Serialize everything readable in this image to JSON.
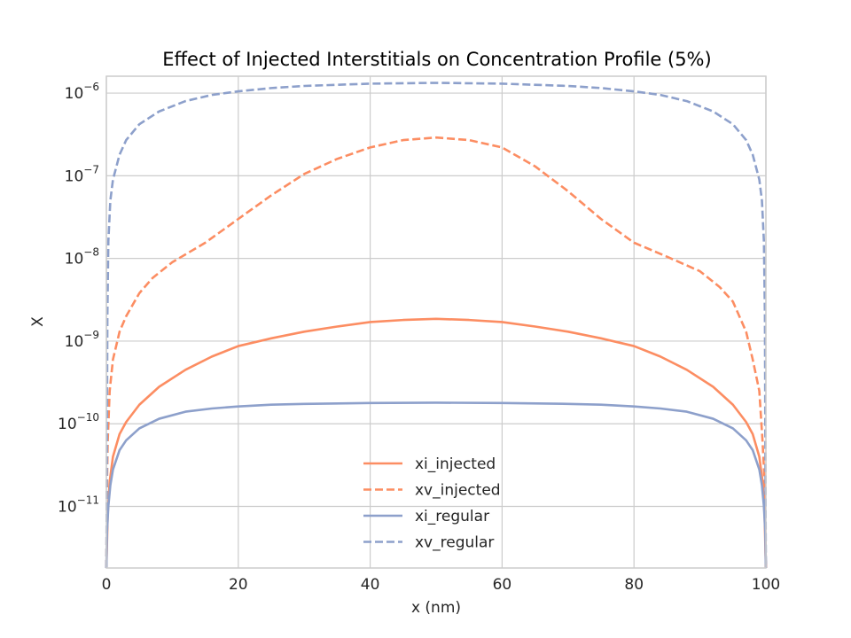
{
  "chart_data": {
    "type": "line",
    "title": "Effect of Injected Interstitials on Concentration Profile (5%)",
    "xlabel": "x (nm)",
    "ylabel": "X",
    "xlim": [
      0,
      100
    ],
    "ylim": [
      1.8e-12,
      1.6e-06
    ],
    "yscale": "log",
    "grid": true,
    "legend_position": "lower center",
    "x_ticks": [
      0,
      20,
      40,
      60,
      80,
      100
    ],
    "x_tick_labels": [
      "0",
      "20",
      "40",
      "60",
      "80",
      "100"
    ],
    "y_ticks": [
      {
        "base": "10",
        "exp": "−6",
        "value": 1e-06
      },
      {
        "base": "10",
        "exp": "−7",
        "value": 1e-07
      },
      {
        "base": "10",
        "exp": "−8",
        "value": 1e-08
      },
      {
        "base": "10",
        "exp": "−9",
        "value": 1e-09
      },
      {
        "base": "10",
        "exp": "−10",
        "value": 1e-10
      },
      {
        "base": "10",
        "exp": "−11",
        "value": 1e-11
      }
    ],
    "series": [
      {
        "name": "xi_injected",
        "color": "#fc8d62",
        "dash": "solid",
        "x": [
          0,
          0.2,
          0.5,
          1,
          2,
          3,
          5,
          8,
          12,
          16,
          20,
          25,
          30,
          35,
          40,
          45,
          50,
          55,
          60,
          65,
          70,
          75,
          80,
          84,
          88,
          92,
          95,
          97,
          98,
          99,
          99.5,
          99.8,
          100
        ],
        "y": [
          1.8e-12,
          8e-12,
          2e-11,
          4e-11,
          7.5e-11,
          1.05e-10,
          1.7e-10,
          2.8e-10,
          4.5e-10,
          6.5e-10,
          8.7e-10,
          1.08e-09,
          1.3e-09,
          1.5e-09,
          1.7e-09,
          1.8e-09,
          1.86e-09,
          1.8e-09,
          1.7e-09,
          1.5e-09,
          1.3e-09,
          1.08e-09,
          8.7e-10,
          6.5e-10,
          4.5e-10,
          2.8e-10,
          1.7e-10,
          1.05e-10,
          7.5e-11,
          4e-11,
          2e-11,
          8e-12,
          1.8e-12
        ]
      },
      {
        "name": "xv_injected",
        "color": "#fc8d62",
        "dash": "dashed",
        "x": [
          0,
          0.1,
          0.2,
          0.5,
          1,
          2,
          3,
          5,
          7,
          10,
          15,
          20,
          25,
          30,
          35,
          40,
          45,
          50,
          55,
          60,
          65,
          70,
          75,
          80,
          85,
          90,
          93,
          95,
          97,
          98,
          99,
          99.5,
          99.8,
          99.9,
          100
        ],
        "y": [
          1.8e-12,
          2e-11,
          6e-11,
          2.5e-10,
          6e-10,
          1.3e-09,
          2e-09,
          3.8e-09,
          5.8e-09,
          9e-09,
          1.55e-08,
          3e-08,
          5.8e-08,
          1.05e-07,
          1.6e-07,
          2.2e-07,
          2.7e-07,
          2.9e-07,
          2.7e-07,
          2.2e-07,
          1.3e-07,
          6.5e-08,
          3e-08,
          1.55e-08,
          1.05e-08,
          7e-09,
          4.5e-09,
          3e-09,
          1.3e-09,
          6e-10,
          2.5e-10,
          6e-11,
          2e-11,
          6e-12,
          1.8e-12
        ]
      },
      {
        "name": "xi_regular",
        "color": "#8da0cb",
        "dash": "solid",
        "x": [
          0,
          0.1,
          0.3,
          0.6,
          1,
          2,
          3,
          5,
          8,
          12,
          16,
          20,
          25,
          30,
          40,
          50,
          60,
          70,
          75,
          80,
          84,
          88,
          92,
          95,
          97,
          98,
          99,
          99.4,
          99.7,
          99.9,
          100
        ],
        "y": [
          1.8e-12,
          5e-12,
          1e-11,
          1.8e-11,
          2.8e-11,
          4.8e-11,
          6.3e-11,
          8.8e-11,
          1.15e-10,
          1.4e-10,
          1.53e-10,
          1.62e-10,
          1.7e-10,
          1.74e-10,
          1.78e-10,
          1.8e-10,
          1.78e-10,
          1.74e-10,
          1.7e-10,
          1.62e-10,
          1.53e-10,
          1.4e-10,
          1.15e-10,
          8.8e-11,
          6.3e-11,
          4.8e-11,
          2.8e-11,
          1.8e-11,
          1e-11,
          5e-12,
          1.8e-12
        ]
      },
      {
        "name": "xv_regular",
        "color": "#8da0cb",
        "dash": "dashed",
        "x": [
          0,
          0.05,
          0.15,
          0.3,
          0.6,
          1,
          2,
          3,
          5,
          8,
          12,
          16,
          20,
          25,
          30,
          40,
          50,
          60,
          70,
          75,
          80,
          84,
          88,
          92,
          95,
          97,
          98,
          99,
          99.4,
          99.7,
          99.85,
          99.95,
          100
        ],
        "y": [
          1.8e-12,
          1e-11,
          2e-09,
          1.6e-08,
          5e-08,
          9e-08,
          1.8e-07,
          2.7e-07,
          4.2e-07,
          6e-07,
          8e-07,
          9.5e-07,
          1.05e-06,
          1.15e-06,
          1.22e-06,
          1.3e-06,
          1.33e-06,
          1.3e-06,
          1.22e-06,
          1.15e-06,
          1.05e-06,
          9.5e-07,
          8e-07,
          6e-07,
          4.2e-07,
          2.7e-07,
          1.8e-07,
          9e-08,
          5e-08,
          1.6e-08,
          2e-09,
          1e-11,
          1.8e-12
        ]
      }
    ]
  }
}
